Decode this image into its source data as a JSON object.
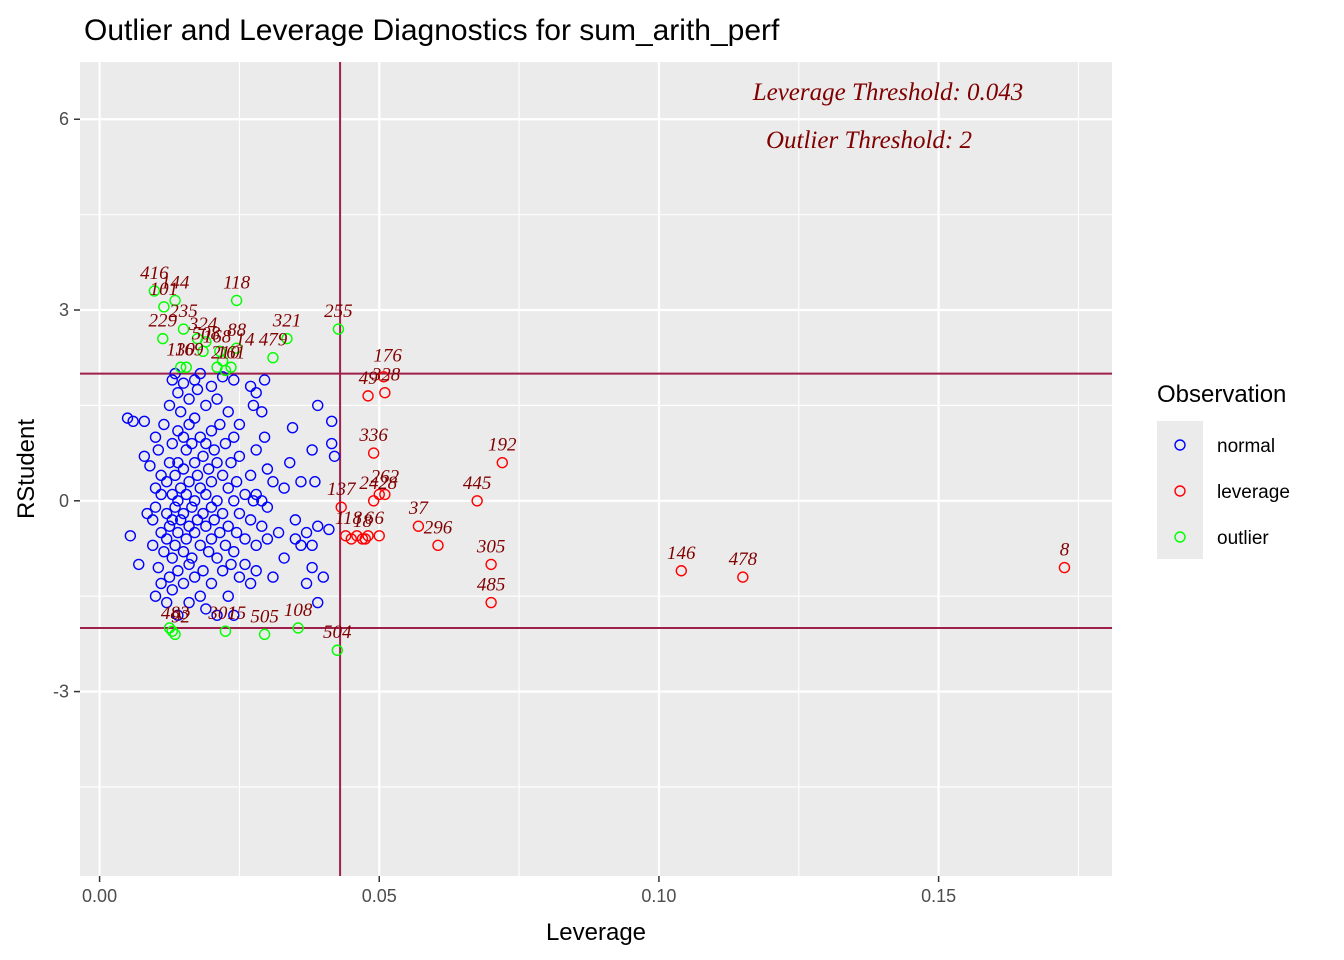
{
  "chart_data": {
    "type": "scatter",
    "title": "Outlier and Leverage Diagnostics for sum_arith_perf",
    "xlabel": "Leverage",
    "ylabel": "RStudent",
    "xlim": [
      -0.0035,
      0.181
    ],
    "ylim": [
      -5.9,
      6.9
    ],
    "xticks": [
      0,
      0.05,
      0.1,
      0.15
    ],
    "xtick_labels": [
      "0.00",
      "0.05",
      "0.10",
      "0.15"
    ],
    "yticks": [
      -3,
      0,
      3,
      6
    ],
    "ytick_labels": [
      "-3",
      "0",
      "3",
      "6"
    ],
    "grid": true,
    "leverage_threshold": 0.043,
    "outlier_threshold": 2,
    "threshold_color": "#9e1f4a",
    "panel_color": "#ebebeb",
    "annotations": [
      "Leverage Threshold: 0.043",
      "Outlier Threshold: 2"
    ],
    "legend": {
      "title": "Observation",
      "position": "right",
      "entries": [
        {
          "label": "normal",
          "color": "#0000ff"
        },
        {
          "label": "leverage",
          "color": "#ff0000"
        },
        {
          "label": "outlier",
          "color": "#00ff00"
        }
      ]
    },
    "series": [
      {
        "name": "normal",
        "color": "#0000ff",
        "points": [
          [
            0.005,
            1.3
          ],
          [
            0.006,
            1.25
          ],
          [
            0.0055,
            -0.55
          ],
          [
            0.008,
            1.25
          ],
          [
            0.007,
            -1.0
          ],
          [
            0.008,
            0.7
          ],
          [
            0.0085,
            -0.2
          ],
          [
            0.009,
            0.55
          ],
          [
            0.0095,
            -0.3
          ],
          [
            0.0095,
            -0.7
          ],
          [
            0.01,
            1.0
          ],
          [
            0.01,
            0.2
          ],
          [
            0.01,
            -0.1
          ],
          [
            0.01,
            -1.5
          ],
          [
            0.0105,
            0.8
          ],
          [
            0.0105,
            -1.05
          ],
          [
            0.011,
            0.4
          ],
          [
            0.011,
            0.1
          ],
          [
            0.011,
            -0.5
          ],
          [
            0.011,
            -1.3
          ],
          [
            0.0115,
            1.2
          ],
          [
            0.0115,
            -0.8
          ],
          [
            0.012,
            0.3
          ],
          [
            0.012,
            -0.2
          ],
          [
            0.012,
            -0.6
          ],
          [
            0.012,
            -1.6
          ],
          [
            0.0125,
            1.5
          ],
          [
            0.0125,
            0.6
          ],
          [
            0.0125,
            -0.4
          ],
          [
            0.0125,
            -1.2
          ],
          [
            0.013,
            1.9
          ],
          [
            0.013,
            0.9
          ],
          [
            0.013,
            0.1
          ],
          [
            0.013,
            -0.3
          ],
          [
            0.013,
            -0.9
          ],
          [
            0.013,
            -1.4
          ],
          [
            0.0135,
            2.0
          ],
          [
            0.0135,
            0.4
          ],
          [
            0.0135,
            -0.1
          ],
          [
            0.0135,
            -0.7
          ],
          [
            0.014,
            1.7
          ],
          [
            0.014,
            1.1
          ],
          [
            0.014,
            0.6
          ],
          [
            0.014,
            0.0
          ],
          [
            0.014,
            -0.5
          ],
          [
            0.014,
            -1.1
          ],
          [
            0.014,
            -1.8
          ],
          [
            0.0145,
            1.4
          ],
          [
            0.0145,
            0.2
          ],
          [
            0.0145,
            -0.3
          ],
          [
            0.015,
            1.85
          ],
          [
            0.015,
            1.0
          ],
          [
            0.015,
            0.5
          ],
          [
            0.015,
            -0.2
          ],
          [
            0.015,
            -0.8
          ],
          [
            0.015,
            -1.3
          ],
          [
            0.0155,
            0.8
          ],
          [
            0.0155,
            0.1
          ],
          [
            0.0155,
            -0.6
          ],
          [
            0.016,
            1.6
          ],
          [
            0.016,
            1.2
          ],
          [
            0.016,
            0.3
          ],
          [
            0.016,
            -0.4
          ],
          [
            0.016,
            -1.0
          ],
          [
            0.016,
            -1.6
          ],
          [
            0.0165,
            0.9
          ],
          [
            0.0165,
            -0.1
          ],
          [
            0.0165,
            -0.9
          ],
          [
            0.017,
            1.9
          ],
          [
            0.017,
            1.3
          ],
          [
            0.017,
            0.6
          ],
          [
            0.017,
            0.0
          ],
          [
            0.017,
            -0.5
          ],
          [
            0.017,
            -1.2
          ],
          [
            0.0175,
            1.75
          ],
          [
            0.0175,
            0.4
          ],
          [
            0.0175,
            -0.3
          ],
          [
            0.018,
            2.0
          ],
          [
            0.018,
            1.0
          ],
          [
            0.018,
            0.2
          ],
          [
            0.018,
            -0.7
          ],
          [
            0.018,
            -1.5
          ],
          [
            0.0185,
            0.7
          ],
          [
            0.0185,
            -0.2
          ],
          [
            0.0185,
            -1.1
          ],
          [
            0.019,
            1.5
          ],
          [
            0.019,
            0.9
          ],
          [
            0.019,
            0.1
          ],
          [
            0.019,
            -0.4
          ],
          [
            0.019,
            -1.7
          ],
          [
            0.0195,
            0.5
          ],
          [
            0.0195,
            -0.8
          ],
          [
            0.02,
            1.8
          ],
          [
            0.02,
            1.1
          ],
          [
            0.02,
            0.3
          ],
          [
            0.02,
            -0.1
          ],
          [
            0.02,
            -0.6
          ],
          [
            0.02,
            -1.3
          ],
          [
            0.0205,
            0.8
          ],
          [
            0.0205,
            -0.3
          ],
          [
            0.021,
            1.6
          ],
          [
            0.021,
            0.6
          ],
          [
            0.021,
            0.0
          ],
          [
            0.021,
            -0.9
          ],
          [
            0.021,
            -1.8
          ],
          [
            0.0215,
            1.2
          ],
          [
            0.0215,
            -0.5
          ],
          [
            0.022,
            1.95
          ],
          [
            0.022,
            0.4
          ],
          [
            0.022,
            -0.2
          ],
          [
            0.022,
            -1.1
          ],
          [
            0.0225,
            0.9
          ],
          [
            0.0225,
            -0.7
          ],
          [
            0.023,
            1.4
          ],
          [
            0.023,
            0.2
          ],
          [
            0.023,
            -0.4
          ],
          [
            0.023,
            -1.5
          ],
          [
            0.0235,
            0.6
          ],
          [
            0.0235,
            -1.0
          ],
          [
            0.024,
            1.9
          ],
          [
            0.024,
            1.0
          ],
          [
            0.024,
            0.0
          ],
          [
            0.024,
            -0.8
          ],
          [
            0.024,
            -1.8
          ],
          [
            0.0245,
            0.3
          ],
          [
            0.0245,
            -0.5
          ],
          [
            0.025,
            1.2
          ],
          [
            0.025,
            0.7
          ],
          [
            0.025,
            -0.2
          ],
          [
            0.025,
            -1.2
          ],
          [
            0.026,
            0.1
          ],
          [
            0.026,
            -0.6
          ],
          [
            0.026,
            -1.0
          ],
          [
            0.027,
            1.8
          ],
          [
            0.027,
            0.4
          ],
          [
            0.027,
            -0.3
          ],
          [
            0.027,
            -1.3
          ],
          [
            0.0275,
            1.5
          ],
          [
            0.0275,
            0.0
          ],
          [
            0.028,
            1.7
          ],
          [
            0.028,
            0.8
          ],
          [
            0.028,
            0.1
          ],
          [
            0.028,
            -0.7
          ],
          [
            0.028,
            -1.1
          ],
          [
            0.029,
            1.4
          ],
          [
            0.029,
            0.0
          ],
          [
            0.029,
            -0.4
          ],
          [
            0.0295,
            1.0
          ],
          [
            0.0295,
            1.9
          ],
          [
            0.03,
            0.5
          ],
          [
            0.03,
            -0.1
          ],
          [
            0.03,
            -0.6
          ],
          [
            0.031,
            0.3
          ],
          [
            0.031,
            -1.2
          ],
          [
            0.032,
            -0.5
          ],
          [
            0.033,
            0.2
          ],
          [
            0.033,
            -0.9
          ],
          [
            0.034,
            0.6
          ],
          [
            0.0345,
            1.15
          ],
          [
            0.035,
            -0.6
          ],
          [
            0.035,
            -0.3
          ],
          [
            0.036,
            -0.7
          ],
          [
            0.036,
            0.3
          ],
          [
            0.037,
            -0.5
          ],
          [
            0.037,
            -1.3
          ],
          [
            0.038,
            0.8
          ],
          [
            0.038,
            -1.05
          ],
          [
            0.038,
            -0.7
          ],
          [
            0.0385,
            0.3
          ],
          [
            0.039,
            1.5
          ],
          [
            0.039,
            -0.4
          ],
          [
            0.039,
            -1.6
          ],
          [
            0.04,
            -1.2
          ],
          [
            0.0415,
            1.25
          ],
          [
            0.0415,
            0.9
          ],
          [
            0.042,
            0.7
          ],
          [
            0.041,
            -0.45
          ]
        ]
      },
      {
        "name": "leverage",
        "color": "#ff0000",
        "points": [
          [
            0.0432,
            -0.1
          ],
          [
            0.044,
            -0.55
          ],
          [
            0.045,
            -0.6
          ],
          [
            0.046,
            -0.55
          ],
          [
            0.047,
            -0.6
          ],
          [
            0.048,
            -0.55
          ],
          [
            0.0475,
            -0.6
          ],
          [
            0.048,
            1.65
          ],
          [
            0.049,
            0.75
          ],
          [
            0.049,
            0.0
          ],
          [
            0.05,
            0.1
          ],
          [
            0.05,
            -0.55
          ],
          [
            0.0508,
            1.95
          ],
          [
            0.051,
            1.7
          ],
          [
            0.051,
            0.1
          ],
          [
            0.057,
            -0.4
          ],
          [
            0.0605,
            -0.7
          ],
          [
            0.0675,
            0.0
          ],
          [
            0.07,
            -1.0
          ],
          [
            0.07,
            -1.6
          ],
          [
            0.072,
            0.6
          ],
          [
            0.104,
            -1.1
          ],
          [
            0.115,
            -1.2
          ],
          [
            0.1725,
            -1.05
          ]
        ]
      },
      {
        "name": "outlier",
        "color": "#00ff00",
        "points": [
          [
            0.0098,
            3.3
          ],
          [
            0.0115,
            3.05
          ],
          [
            0.0135,
            3.15
          ],
          [
            0.0113,
            2.55
          ],
          [
            0.015,
            2.7
          ],
          [
            0.0145,
            2.1
          ],
          [
            0.0155,
            2.1
          ],
          [
            0.0175,
            2.55
          ],
          [
            0.0185,
            2.35
          ],
          [
            0.019,
            2.5
          ],
          [
            0.021,
            2.1
          ],
          [
            0.0215,
            2.35
          ],
          [
            0.022,
            2.2
          ],
          [
            0.0225,
            2.05
          ],
          [
            0.0235,
            2.1
          ],
          [
            0.0245,
            2.4
          ],
          [
            0.0245,
            3.15
          ],
          [
            0.031,
            2.25
          ],
          [
            0.0335,
            2.55
          ],
          [
            0.0427,
            2.7
          ],
          [
            0.0125,
            -2.0
          ],
          [
            0.013,
            -2.05
          ],
          [
            0.0135,
            -2.1
          ],
          [
            0.0225,
            -2.05
          ],
          [
            0.0295,
            -2.1
          ],
          [
            0.0355,
            -2.0
          ],
          [
            0.0425,
            -2.35
          ]
        ]
      }
    ],
    "point_labels": [
      {
        "text": "416",
        "x": 0.0098,
        "y": 3.3
      },
      {
        "text": "101",
        "x": 0.0115,
        "y": 3.05
      },
      {
        "text": "144",
        "x": 0.0135,
        "y": 3.15
      },
      {
        "text": "118",
        "x": 0.0245,
        "y": 3.15
      },
      {
        "text": "229",
        "x": 0.0113,
        "y": 2.55
      },
      {
        "text": "235",
        "x": 0.015,
        "y": 2.7
      },
      {
        "text": "324",
        "x": 0.0185,
        "y": 2.5
      },
      {
        "text": "508",
        "x": 0.019,
        "y": 2.35
      },
      {
        "text": "168",
        "x": 0.021,
        "y": 2.3
      },
      {
        "text": "88",
        "x": 0.0245,
        "y": 2.4
      },
      {
        "text": "14",
        "x": 0.026,
        "y": 2.25
      },
      {
        "text": "479",
        "x": 0.031,
        "y": 2.25
      },
      {
        "text": "321",
        "x": 0.0335,
        "y": 2.55
      },
      {
        "text": "255",
        "x": 0.0427,
        "y": 2.7
      },
      {
        "text": "130",
        "x": 0.0145,
        "y": 2.1
      },
      {
        "text": "169",
        "x": 0.016,
        "y": 2.1
      },
      {
        "text": "210",
        "x": 0.0225,
        "y": 2.05
      },
      {
        "text": "161",
        "x": 0.0235,
        "y": 2.05
      },
      {
        "text": "176",
        "x": 0.0515,
        "y": 2.0
      },
      {
        "text": "49",
        "x": 0.048,
        "y": 1.65
      },
      {
        "text": "328",
        "x": 0.0512,
        "y": 1.7
      },
      {
        "text": "336",
        "x": 0.049,
        "y": 0.75
      },
      {
        "text": "192",
        "x": 0.072,
        "y": 0.6
      },
      {
        "text": "262",
        "x": 0.051,
        "y": 0.1
      },
      {
        "text": "242",
        "x": 0.049,
        "y": 0.0
      },
      {
        "text": "28",
        "x": 0.0515,
        "y": 0.0
      },
      {
        "text": "137",
        "x": 0.0432,
        "y": -0.1
      },
      {
        "text": "445",
        "x": 0.0675,
        "y": 0.0
      },
      {
        "text": "37",
        "x": 0.057,
        "y": -0.4
      },
      {
        "text": "296",
        "x": 0.0605,
        "y": -0.7
      },
      {
        "text": "118",
        "x": 0.0445,
        "y": -0.55
      },
      {
        "text": "18",
        "x": 0.047,
        "y": -0.6
      },
      {
        "text": "6",
        "x": 0.0482,
        "y": -0.55
      },
      {
        "text": "6",
        "x": 0.05,
        "y": -0.55
      },
      {
        "text": "305",
        "x": 0.07,
        "y": -1.0
      },
      {
        "text": "485",
        "x": 0.07,
        "y": -1.6
      },
      {
        "text": "146",
        "x": 0.104,
        "y": -1.1
      },
      {
        "text": "478",
        "x": 0.115,
        "y": -1.2
      },
      {
        "text": "8",
        "x": 0.1725,
        "y": -1.05
      },
      {
        "text": "483",
        "x": 0.0135,
        "y": -2.05
      },
      {
        "text": "92",
        "x": 0.0145,
        "y": -2.1
      },
      {
        "text": "301",
        "x": 0.022,
        "y": -2.05
      },
      {
        "text": "15",
        "x": 0.0245,
        "y": -2.05
      },
      {
        "text": "505",
        "x": 0.0295,
        "y": -2.1
      },
      {
        "text": "108",
        "x": 0.0355,
        "y": -2.0
      },
      {
        "text": "504",
        "x": 0.0425,
        "y": -2.35
      }
    ]
  }
}
